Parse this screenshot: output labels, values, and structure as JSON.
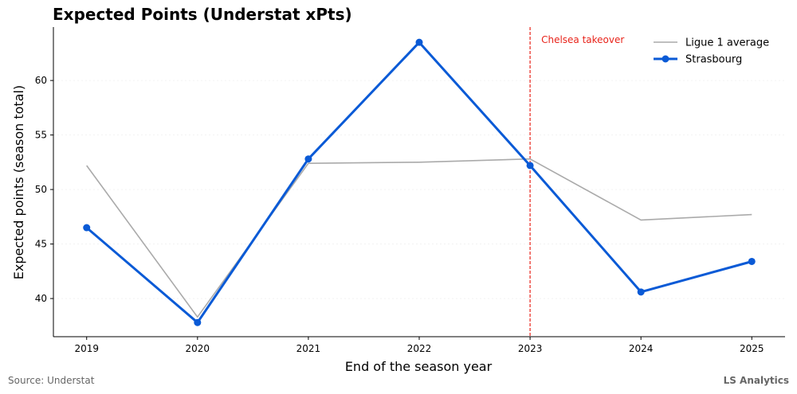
{
  "chart_data": {
    "type": "line",
    "title": "Expected Points (Understat xPts)",
    "xlabel": "End of the season year",
    "ylabel": "Expected points (season total)",
    "x": [
      2019,
      2020,
      2021,
      2022,
      2023,
      2024,
      2025
    ],
    "xlim": [
      2018.7,
      2025.3
    ],
    "ylim": [
      36.5,
      64.9
    ],
    "yticks": [
      40,
      45,
      50,
      55,
      60
    ],
    "grid": "horizontal, faint",
    "legend_position": "top-right",
    "series": [
      {
        "name": "Ligue 1 average",
        "values": [
          52.2,
          38.3,
          52.4,
          52.5,
          52.8,
          47.2,
          47.7
        ],
        "color": "#aaaaaa",
        "markers": false
      },
      {
        "name": "Strasbourg",
        "values": [
          46.5,
          37.8,
          52.8,
          63.5,
          52.2,
          40.6,
          43.4
        ],
        "color": "#0a5ad6",
        "markers": true
      }
    ],
    "annotations": [
      {
        "type": "vline",
        "x": 2023,
        "label": "Chelsea takeover",
        "color": "#e8231a"
      }
    ]
  },
  "footer": {
    "source": "Source: Understat",
    "brand": "LS Analytics"
  }
}
